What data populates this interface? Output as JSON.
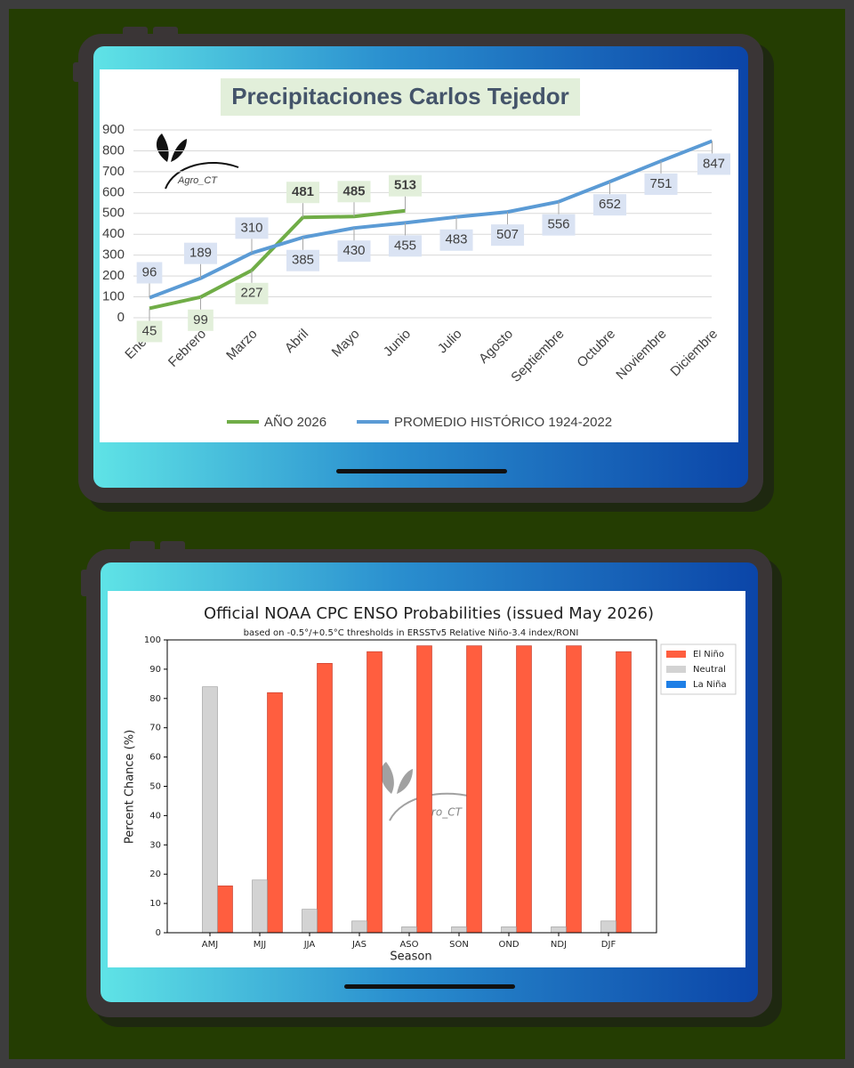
{
  "chart_data": [
    {
      "type": "line",
      "title": "Precipitaciones Carlos Tejedor",
      "watermark": "Agro_CT",
      "categories": [
        "Enero",
        "Febrero",
        "Marzo",
        "Abril",
        "Mayo",
        "Junio",
        "Julio",
        "Agosto",
        "Septiembre",
        "Octubre",
        "Noviembre",
        "Diciembre"
      ],
      "series": [
        {
          "name": "AÑO 2026",
          "color": "#70ad47",
          "values": [
            45,
            99,
            227,
            481,
            485,
            513,
            null,
            null,
            null,
            null,
            null,
            null
          ]
        },
        {
          "name": "PROMEDIO HISTÓRICO 1924-2022",
          "color": "#5b9bd5",
          "values": [
            96,
            189,
            310,
            385,
            430,
            455,
            483,
            507,
            556,
            652,
            751,
            847
          ]
        }
      ],
      "ylim": [
        0,
        900
      ],
      "yticks": [
        0,
        100,
        200,
        300,
        400,
        500,
        600,
        700,
        800,
        900
      ],
      "grid": true,
      "legend": "bottom"
    },
    {
      "type": "bar",
      "title": "Official NOAA CPC ENSO Probabilities (issued May 2026)",
      "subtitle": "based on -0.5°/+0.5°C thresholds in ERSSTv5 Relative Niño-3.4 index/RONI",
      "watermark": "Agro_CT",
      "xlabel": "Season",
      "ylabel": "Percent Chance (%)",
      "categories": [
        "AMJ",
        "MJJ",
        "JJA",
        "JAS",
        "ASO",
        "SON",
        "OND",
        "NDJ",
        "DJF"
      ],
      "series": [
        {
          "name": "El Niño",
          "color": "#ff5e3f",
          "values": [
            16,
            82,
            92,
            96,
            98,
            98,
            98,
            98,
            96
          ]
        },
        {
          "name": "Neutral",
          "color": "#d3d3d3",
          "values": [
            84,
            18,
            8,
            4,
            2,
            2,
            2,
            2,
            4
          ]
        },
        {
          "name": "La Niña",
          "color": "#1f7fe6",
          "values": [
            0,
            0,
            0,
            0,
            0,
            0,
            0,
            0,
            0
          ]
        }
      ],
      "ylim": [
        0,
        100
      ],
      "yticks": [
        0,
        10,
        20,
        30,
        40,
        50,
        60,
        70,
        80,
        90,
        100
      ],
      "grid": false,
      "legend": "upper right"
    }
  ]
}
